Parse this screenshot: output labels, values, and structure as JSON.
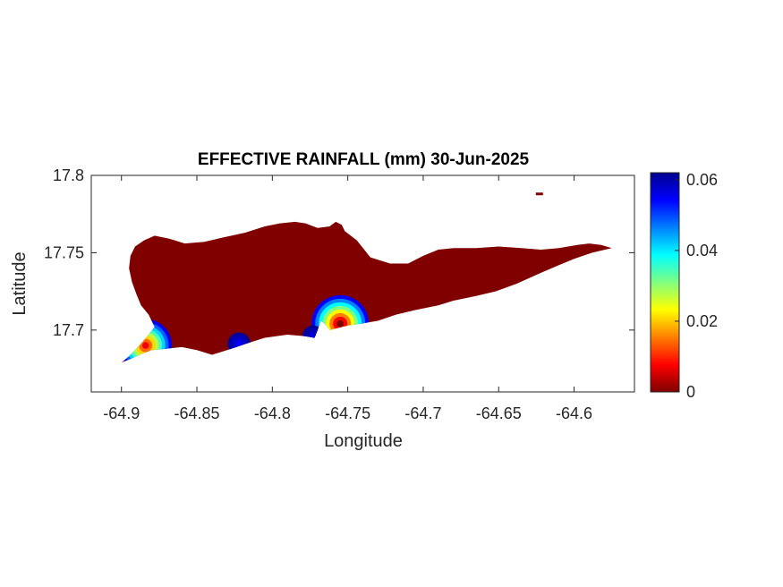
{
  "chart_data": {
    "type": "heatmap",
    "title": "EFFECTIVE RAINFALL (mm) 30-Jun-2025",
    "xlabel": "Longitude",
    "ylabel": "Latitude",
    "x_ticks": [
      -64.9,
      -64.85,
      -64.8,
      -64.75,
      -64.7,
      -64.65,
      -64.6
    ],
    "x_tick_labels": [
      "-64.9",
      "-64.85",
      "-64.8",
      "-64.75",
      "-64.7",
      "-64.65",
      "-64.6"
    ],
    "y_ticks": [
      17.7,
      17.75,
      17.8
    ],
    "y_tick_labels": [
      "17.7",
      "17.75",
      "17.8"
    ],
    "xlim": [
      -64.92,
      -64.56
    ],
    "ylim": [
      17.66,
      17.8
    ],
    "colorbar": {
      "colormap": "jet",
      "range": [
        0,
        0.062
      ],
      "ticks": [
        0,
        0.02,
        0.04,
        0.06
      ],
      "tick_labels": [
        "0",
        "0.02",
        "0.04",
        "0.06"
      ]
    },
    "base_value": 0,
    "base_color": "#800000",
    "island_outline": [
      [
        -64.9,
        17.679
      ],
      [
        -64.895,
        17.683
      ],
      [
        -64.888,
        17.69
      ],
      [
        -64.882,
        17.697
      ],
      [
        -64.878,
        17.702
      ],
      [
        -64.882,
        17.71
      ],
      [
        -64.887,
        17.716
      ],
      [
        -64.89,
        17.723
      ],
      [
        -64.893,
        17.731
      ],
      [
        -64.895,
        17.74
      ],
      [
        -64.894,
        17.748
      ],
      [
        -64.891,
        17.754
      ],
      [
        -64.885,
        17.758
      ],
      [
        -64.878,
        17.761
      ],
      [
        -64.868,
        17.759
      ],
      [
        -64.858,
        17.756
      ],
      [
        -64.845,
        17.757
      ],
      [
        -64.832,
        17.76
      ],
      [
        -64.818,
        17.763
      ],
      [
        -64.805,
        17.767
      ],
      [
        -64.795,
        17.769
      ],
      [
        -64.785,
        17.77
      ],
      [
        -64.778,
        17.769
      ],
      [
        -64.77,
        17.766
      ],
      [
        -64.762,
        17.767
      ],
      [
        -64.758,
        17.77
      ],
      [
        -64.754,
        17.768
      ],
      [
        -64.752,
        17.764
      ],
      [
        -64.744,
        17.758
      ],
      [
        -64.735,
        17.747
      ],
      [
        -64.722,
        17.743
      ],
      [
        -64.71,
        17.743
      ],
      [
        -64.7,
        17.748
      ],
      [
        -64.69,
        17.752
      ],
      [
        -64.68,
        17.753
      ],
      [
        -64.665,
        17.753
      ],
      [
        -64.65,
        17.754
      ],
      [
        -64.635,
        17.753
      ],
      [
        -64.622,
        17.752
      ],
      [
        -64.61,
        17.753
      ],
      [
        -64.598,
        17.755
      ],
      [
        -64.59,
        17.756
      ],
      [
        -64.582,
        17.755
      ],
      [
        -64.575,
        17.753
      ],
      [
        -64.588,
        17.75
      ],
      [
        -64.6,
        17.746
      ],
      [
        -64.61,
        17.742
      ],
      [
        -64.622,
        17.737
      ],
      [
        -64.638,
        17.73
      ],
      [
        -64.652,
        17.725
      ],
      [
        -64.665,
        17.722
      ],
      [
        -64.68,
        17.719
      ],
      [
        -64.69,
        17.716
      ],
      [
        -64.705,
        17.713
      ],
      [
        -64.718,
        17.71
      ],
      [
        -64.73,
        17.706
      ],
      [
        -64.742,
        17.704
      ],
      [
        -64.75,
        17.703
      ],
      [
        -64.758,
        17.701
      ],
      [
        -64.762,
        17.7
      ],
      [
        -64.765,
        17.704
      ],
      [
        -64.768,
        17.706
      ],
      [
        -64.77,
        17.7
      ],
      [
        -64.772,
        17.695
      ],
      [
        -64.778,
        17.696
      ],
      [
        -64.79,
        17.697
      ],
      [
        -64.805,
        17.695
      ],
      [
        -64.818,
        17.691
      ],
      [
        -64.83,
        17.687
      ],
      [
        -64.84,
        17.684
      ],
      [
        -64.85,
        17.687
      ],
      [
        -64.86,
        17.689
      ],
      [
        -64.87,
        17.688
      ],
      [
        -64.88,
        17.687
      ],
      [
        -64.888,
        17.684
      ],
      [
        -64.895,
        17.681
      ]
    ],
    "hotspots": [
      {
        "lon": -64.755,
        "lat": 17.704,
        "max": 0.062
      },
      {
        "lon": -64.884,
        "lat": 17.69,
        "max": 0.055
      },
      {
        "lon": -64.822,
        "lat": 17.691,
        "max": 0.008
      },
      {
        "lon": -64.773,
        "lat": 17.696,
        "max": 0.006
      }
    ],
    "islet": {
      "lon": -64.623,
      "lat": 17.788
    }
  }
}
